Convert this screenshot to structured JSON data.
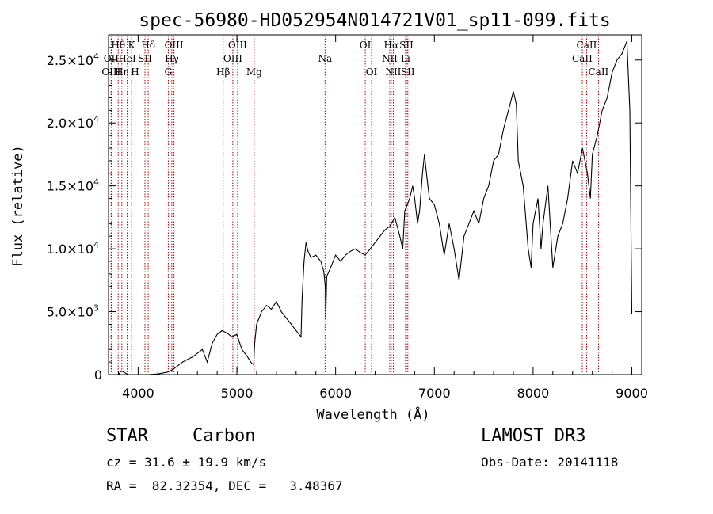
{
  "chart_data": {
    "type": "line",
    "title": "spec-56980-HD052954N014721V01_sp11-099.fits",
    "xlabel": "Wavelength (Å)",
    "ylabel": "Flux (relative)",
    "xlim": [
      3700,
      9100
    ],
    "ylim": [
      0,
      27000
    ],
    "x_ticks": [
      4000,
      5000,
      6000,
      7000,
      8000,
      9000
    ],
    "y_ticks": [
      {
        "value": 0,
        "mantissa": "0",
        "exp": ""
      },
      {
        "value": 5000,
        "mantissa": "5.0×10",
        "exp": "3"
      },
      {
        "value": 10000,
        "mantissa": "1.0×10",
        "exp": "4"
      },
      {
        "value": 15000,
        "mantissa": "1.5×10",
        "exp": "4"
      },
      {
        "value": 20000,
        "mantissa": "2.0×10",
        "exp": "4"
      },
      {
        "value": 25000,
        "mantissa": "2.5×10",
        "exp": "4"
      }
    ],
    "series": [
      {
        "x": [
          3700,
          3800,
          3830,
          3900,
          4000,
          4100,
          4200,
          4300,
          4350,
          4400,
          4450,
          4500,
          4550,
          4600,
          4650,
          4700,
          4750,
          4800,
          4850,
          4900,
          4950,
          5000,
          5050,
          5100,
          5150,
          5170,
          5180,
          5200,
          5250,
          5300,
          5350,
          5400,
          5450,
          5500,
          5550,
          5600,
          5650,
          5660,
          5680,
          5700,
          5720,
          5750,
          5800,
          5850,
          5880,
          5895,
          5900,
          5910,
          5950,
          6000,
          6050,
          6100,
          6150,
          6200,
          6250,
          6300,
          6350,
          6400,
          6450,
          6500,
          6550,
          6600,
          6650,
          6680,
          6700,
          6750,
          6780,
          6800,
          6830,
          6850,
          6880,
          6900,
          6920,
          6950,
          7000,
          7050,
          7100,
          7150,
          7200,
          7250,
          7300,
          7350,
          7400,
          7450,
          7500,
          7550,
          7600,
          7650,
          7700,
          7750,
          7800,
          7830,
          7850,
          7900,
          7950,
          7980,
          8000,
          8050,
          8080,
          8100,
          8150,
          8200,
          8250,
          8300,
          8350,
          8400,
          8450,
          8500,
          8550,
          8580,
          8600,
          8650,
          8700,
          8750,
          8800,
          8850,
          8900,
          8950,
          8980,
          9000
        ],
        "y": [
          0,
          0,
          300,
          0,
          0,
          0,
          50,
          200,
          400,
          700,
          1000,
          1200,
          1400,
          1700,
          2000,
          1000,
          2500,
          3200,
          3500,
          3300,
          3000,
          3200,
          2000,
          1500,
          900,
          800,
          2500,
          4000,
          5000,
          5500,
          5200,
          5800,
          5000,
          4500,
          4000,
          3500,
          3000,
          6000,
          9000,
          10500,
          9800,
          9300,
          9500,
          9000,
          8200,
          7000,
          4500,
          7800,
          8500,
          9500,
          9000,
          9500,
          9800,
          10000,
          9700,
          9500,
          10000,
          10500,
          11000,
          11500,
          11800,
          12500,
          11000,
          10000,
          13000,
          14000,
          15000,
          14000,
          12000,
          13000,
          16000,
          17500,
          16000,
          14000,
          13500,
          12000,
          9500,
          12000,
          10000,
          7500,
          11000,
          12000,
          13000,
          12000,
          14000,
          15000,
          17000,
          17500,
          19500,
          21000,
          22500,
          21500,
          17000,
          15000,
          10000,
          8500,
          12000,
          14000,
          10000,
          12000,
          15000,
          8500,
          11000,
          12000,
          14000,
          17000,
          16000,
          18000,
          16000,
          14000,
          17500,
          19000,
          21000,
          22000,
          24000,
          25000,
          25500,
          26500,
          21000,
          4800
        ]
      }
    ],
    "lines": [
      {
        "name": "Hθ",
        "wl": 3798,
        "row": 1
      },
      {
        "name": "OII",
        "wl": 3727,
        "row": 2
      },
      {
        "name": "OIII",
        "wl": 3727,
        "row": 3
      },
      {
        "name": "Hη",
        "wl": 3835,
        "row": 3
      },
      {
        "name": "K",
        "wl": 3934,
        "row": 1
      },
      {
        "name": "HeI",
        "wl": 3889,
        "row": 2
      },
      {
        "name": "H",
        "wl": 3969,
        "row": 3
      },
      {
        "name": "SII",
        "wl": 4069,
        "row": 2
      },
      {
        "name": "Hδ",
        "wl": 4102,
        "row": 1
      },
      {
        "name": "OIII",
        "wl": 4363,
        "row": 1
      },
      {
        "name": "Hγ",
        "wl": 4341,
        "row": 2
      },
      {
        "name": "G",
        "wl": 4305,
        "row": 3
      },
      {
        "name": "Hβ",
        "wl": 4861,
        "row": 3
      },
      {
        "name": "OIII",
        "wl": 5007,
        "row": 1
      },
      {
        "name": "OIII",
        "wl": 4959,
        "row": 2
      },
      {
        "name": "Mg",
        "wl": 5175,
        "row": 3
      },
      {
        "name": "Na",
        "wl": 5893,
        "row": 2
      },
      {
        "name": "OI",
        "wl": 6300,
        "row": 1
      },
      {
        "name": "OI",
        "wl": 6364,
        "row": 3
      },
      {
        "name": "Hα",
        "wl": 6563,
        "row": 1
      },
      {
        "name": "NII",
        "wl": 6548,
        "row": 2
      },
      {
        "name": "NII",
        "wl": 6584,
        "row": 3
      },
      {
        "name": "SII",
        "wl": 6717,
        "row": 1
      },
      {
        "name": "Li",
        "wl": 6708,
        "row": 2
      },
      {
        "name": "SII",
        "wl": 6731,
        "row": 3
      },
      {
        "name": "CaII",
        "wl": 8542,
        "row": 1
      },
      {
        "name": "CaII",
        "wl": 8498,
        "row": 2
      },
      {
        "name": "CaII",
        "wl": 8662,
        "row": 3
      }
    ],
    "line_color": "#aa0000",
    "grid": false
  },
  "info": {
    "object_class": "STAR",
    "subclass": "Carbon",
    "survey": "LAMOST DR3",
    "cz": "cz = 31.6 ± 19.9 km/s",
    "obs_date": "Obs-Date: 20141118",
    "coords": "RA =  82.32354, DEC =   3.48367"
  }
}
